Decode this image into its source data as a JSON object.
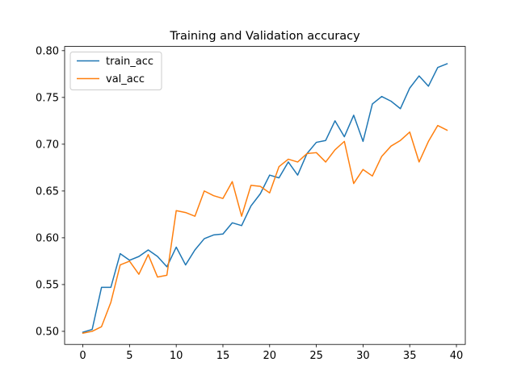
{
  "chart_data": {
    "type": "line",
    "title": "Training and Validation accuracy",
    "xlabel": "",
    "ylabel": "",
    "xlim": [
      -1.95,
      40.95
    ],
    "ylim": [
      0.486,
      0.8045
    ],
    "xticks": [
      0,
      5,
      10,
      15,
      20,
      25,
      30,
      35,
      40
    ],
    "yticks": [
      0.5,
      0.55,
      0.6,
      0.65,
      0.7,
      0.75,
      0.8
    ],
    "ytick_labels": [
      "0.50",
      "0.55",
      "0.60",
      "0.65",
      "0.70",
      "0.75",
      "0.80"
    ],
    "grid": false,
    "legend": "top-left",
    "x": [
      0,
      1,
      2,
      3,
      4,
      5,
      6,
      7,
      8,
      9,
      10,
      11,
      12,
      13,
      14,
      15,
      16,
      17,
      18,
      19,
      20,
      21,
      22,
      23,
      24,
      25,
      26,
      27,
      28,
      29,
      30,
      31,
      32,
      33,
      34,
      35,
      36,
      37,
      38,
      39
    ],
    "series": [
      {
        "name": "train_acc",
        "color": "#1f77b4",
        "values": [
          0.499,
          0.502,
          0.547,
          0.547,
          0.583,
          0.576,
          0.58,
          0.587,
          0.58,
          0.569,
          0.59,
          0.571,
          0.587,
          0.599,
          0.603,
          0.604,
          0.616,
          0.613,
          0.634,
          0.647,
          0.667,
          0.664,
          0.681,
          0.667,
          0.69,
          0.702,
          0.704,
          0.725,
          0.708,
          0.731,
          0.703,
          0.743,
          0.751,
          0.746,
          0.738,
          0.76,
          0.773,
          0.762,
          0.782,
          0.786
        ]
      },
      {
        "name": "val_acc",
        "color": "#ff7f0e",
        "values": [
          0.498,
          0.5,
          0.505,
          0.531,
          0.571,
          0.575,
          0.561,
          0.582,
          0.558,
          0.56,
          0.629,
          0.627,
          0.623,
          0.65,
          0.645,
          0.642,
          0.66,
          0.623,
          0.656,
          0.655,
          0.648,
          0.676,
          0.684,
          0.681,
          0.69,
          0.691,
          0.681,
          0.694,
          0.703,
          0.658,
          0.673,
          0.666,
          0.687,
          0.698,
          0.704,
          0.713,
          0.681,
          0.703,
          0.72,
          0.715
        ]
      }
    ]
  }
}
